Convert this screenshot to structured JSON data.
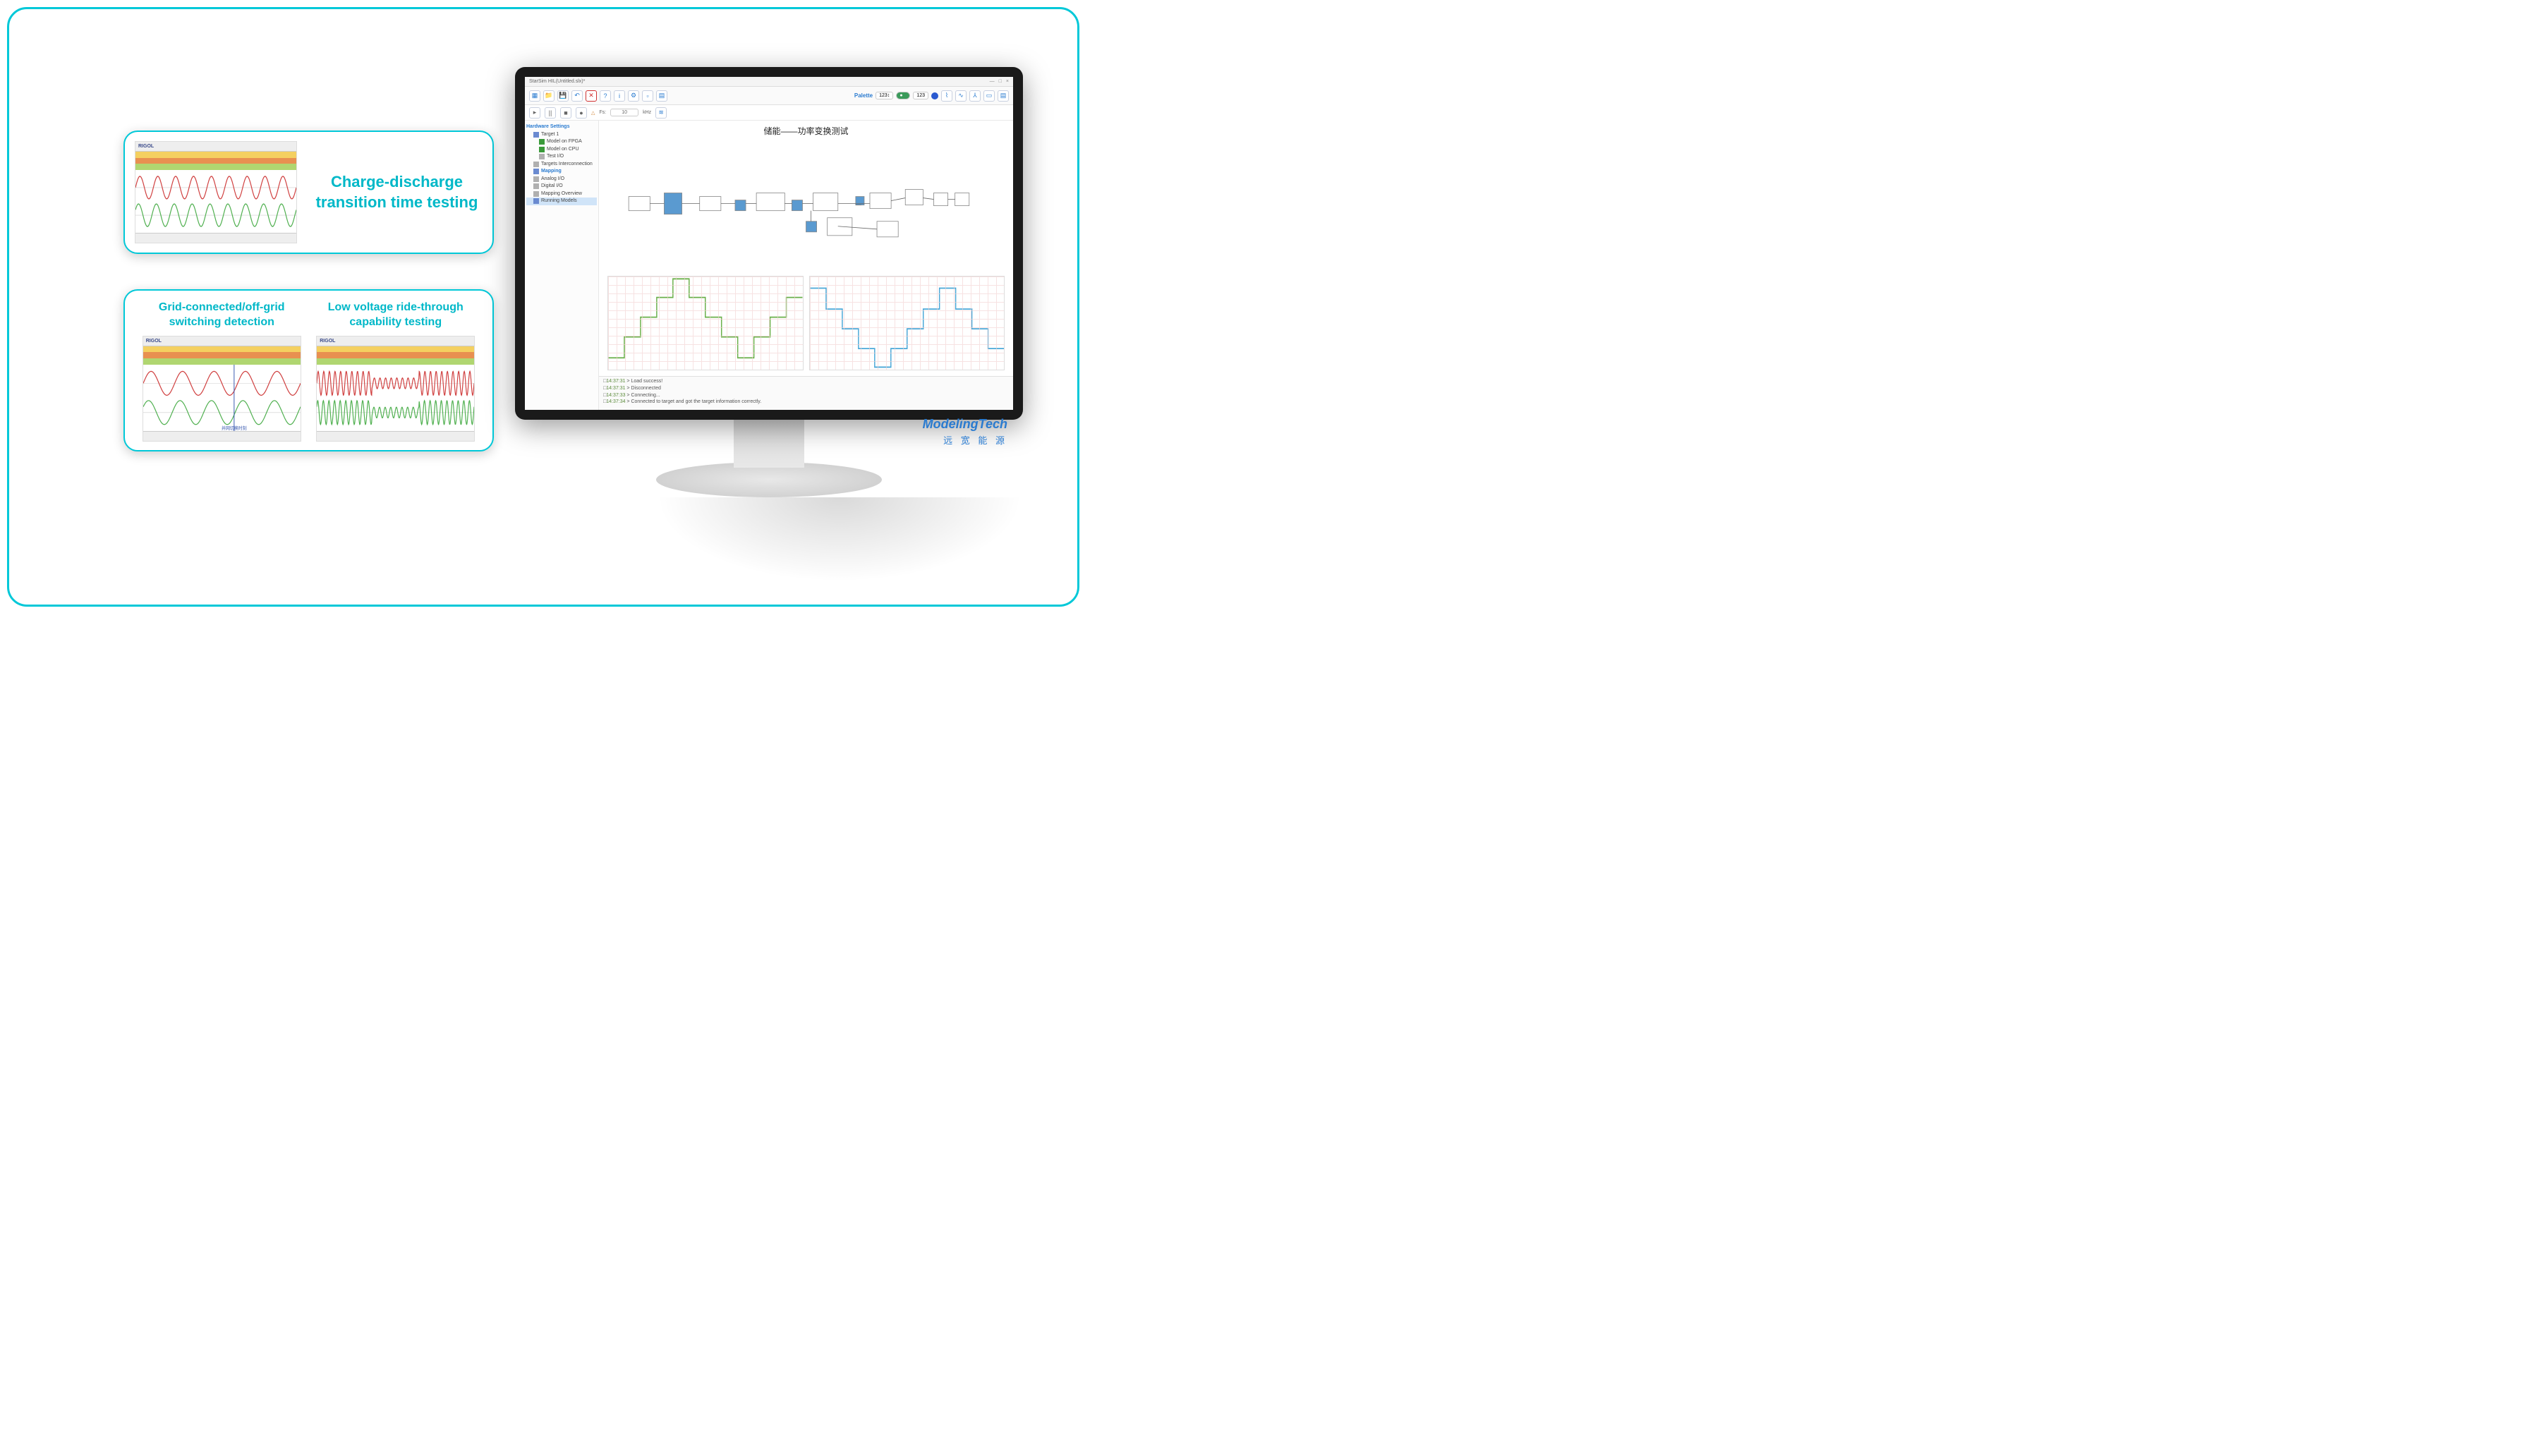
{
  "card1": {
    "title": "Charge-discharge\ntransition time testing",
    "scope_logo": "RIGOL",
    "bands": [
      "#f4d060",
      "#e89050",
      "#b0d670"
    ],
    "wave1_color": "#d04040",
    "wave2_color": "#50b050",
    "wave_cycles": 9
  },
  "card2": {
    "col1_title": "Grid-connected/off-grid\nswitching detection",
    "col2_title": "Low voltage ride-through\ncapability testing",
    "scope_logo": "RIGOL",
    "bands": [
      "#f4d060",
      "#e89050",
      "#b0d670"
    ],
    "wave1_color": "#d04040",
    "wave2_color": "#50b050",
    "col1_cycles": 5,
    "col2_cycles": 28,
    "annotation": "并网切换时刻"
  },
  "app": {
    "title": "StarSim HIL(Untitled.slx)*",
    "window_buttons": [
      "—",
      "□",
      "×"
    ],
    "toolbar_icons": [
      "new",
      "open",
      "save",
      "undo",
      "close",
      "help",
      "info",
      "config",
      "export",
      "report"
    ],
    "toolbar_colors": {
      "new": "#2a7bd0",
      "open": "#2a7bd0",
      "save": "#2a7bd0",
      "close": "#d03030",
      "help": "#2a7bd0",
      "info": "#2a7bd0"
    },
    "palette_label": "Palette",
    "palette_val": "123↕",
    "toggle_on": true,
    "right_pills": [
      "123",
      "○",
      "□"
    ],
    "right_icons_color": "#2a7bd0",
    "toolbar2": {
      "play": "▸",
      "pause": "||",
      "stop": "■",
      "rec": "●",
      "fs_label": "Fs:",
      "fs_val": "10",
      "fs_unit": "kHz",
      "warn": "△"
    },
    "tree": {
      "header": "Hardware Settings",
      "items": [
        {
          "label": "Target 1",
          "lvl": 1,
          "icon": "#6a8ad0"
        },
        {
          "label": "Model on FPGA",
          "lvl": 2,
          "icon": "#3a9a3a"
        },
        {
          "label": "Model on CPU",
          "lvl": 2,
          "icon": "#3a9a3a"
        },
        {
          "label": "Test I/O",
          "lvl": 2,
          "icon": "#b0b0b0"
        },
        {
          "label": "Targets Interconnection",
          "lvl": 1,
          "icon": "#b0b0b0"
        },
        {
          "label": "Mapping",
          "lvl": 0,
          "icon": "#6a8ad0",
          "bold": true
        },
        {
          "label": "Analog I/O",
          "lvl": 1,
          "icon": "#b0b0b0"
        },
        {
          "label": "Digital I/O",
          "lvl": 1,
          "icon": "#b0b0b0"
        },
        {
          "label": "Mapping Overview",
          "lvl": 1,
          "icon": "#b0b0b0"
        },
        {
          "label": "Running Models",
          "lvl": 0,
          "icon": "#6a8ad0",
          "selected": true
        }
      ]
    },
    "canvas_title": "储能——功率变换测试",
    "chart1": {
      "color": "#6ab04a",
      "ylim": [
        -40,
        40
      ],
      "values": [
        -30,
        -12,
        5,
        22,
        38,
        22,
        5,
        -12,
        -30,
        -12,
        5,
        22
      ],
      "grid": "#f2d0d0"
    },
    "chart2": {
      "color": "#4aa8d8",
      "ylim": [
        -40,
        40
      ],
      "values": [
        30,
        12,
        -5,
        -22,
        -38,
        -22,
        -5,
        12,
        30,
        12,
        -5,
        -22
      ],
      "grid": "#f2d0d0"
    },
    "log": [
      {
        "t": "14:37:31",
        "m": "Load success!"
      },
      {
        "t": "14:37:31",
        "m": "Disconnected"
      },
      {
        "t": "14:37:33",
        "m": "Connecting..."
      },
      {
        "t": "14:37:34",
        "m": "Connected to target and got the target information correctly."
      }
    ]
  },
  "brand": {
    "top": "ModelingTech",
    "bottom": "远 宽 能 源"
  }
}
